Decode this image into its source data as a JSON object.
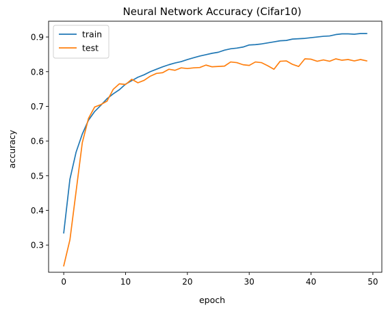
{
  "chart_data": {
    "type": "line",
    "title": "Neural Network Accuracy (Cifar10)",
    "xlabel": "epoch",
    "ylabel": "accuracy",
    "xlim": [
      -2.45,
      51.45
    ],
    "ylim": [
      0.2215,
      0.9455
    ],
    "xticks": [
      0,
      10,
      20,
      30,
      40,
      50
    ],
    "yticks": [
      0.3,
      0.4,
      0.5,
      0.6,
      0.7,
      0.8,
      0.9
    ],
    "grid": false,
    "legend": "top-left",
    "x": [
      0,
      1,
      2,
      3,
      4,
      5,
      6,
      7,
      8,
      9,
      10,
      11,
      12,
      13,
      14,
      15,
      16,
      17,
      18,
      19,
      20,
      21,
      22,
      23,
      24,
      25,
      26,
      27,
      28,
      29,
      30,
      31,
      32,
      33,
      34,
      35,
      36,
      37,
      38,
      39,
      40,
      41,
      42,
      43,
      44,
      45,
      46,
      47,
      48,
      49
    ],
    "series": [
      {
        "name": "train",
        "color": "#1f77b4",
        "values": [
          0.335,
          0.49,
          0.568,
          0.62,
          0.66,
          0.685,
          0.703,
          0.722,
          0.736,
          0.748,
          0.764,
          0.774,
          0.784,
          0.791,
          0.8,
          0.807,
          0.814,
          0.82,
          0.825,
          0.829,
          0.835,
          0.84,
          0.845,
          0.849,
          0.853,
          0.856,
          0.862,
          0.866,
          0.868,
          0.871,
          0.877,
          0.878,
          0.88,
          0.883,
          0.886,
          0.889,
          0.89,
          0.894,
          0.895,
          0.896,
          0.898,
          0.9,
          0.902,
          0.903,
          0.907,
          0.909,
          0.909,
          0.908,
          0.91,
          0.91
        ]
      },
      {
        "name": "test",
        "color": "#ff7f0e",
        "values": [
          0.24,
          0.315,
          0.455,
          0.595,
          0.665,
          0.698,
          0.705,
          0.715,
          0.749,
          0.765,
          0.763,
          0.778,
          0.768,
          0.775,
          0.787,
          0.795,
          0.797,
          0.807,
          0.804,
          0.811,
          0.809,
          0.811,
          0.812,
          0.819,
          0.814,
          0.815,
          0.816,
          0.828,
          0.826,
          0.82,
          0.818,
          0.828,
          0.826,
          0.817,
          0.807,
          0.83,
          0.831,
          0.821,
          0.815,
          0.837,
          0.836,
          0.83,
          0.834,
          0.83,
          0.837,
          0.833,
          0.835,
          0.831,
          0.835,
          0.831
        ]
      }
    ]
  }
}
